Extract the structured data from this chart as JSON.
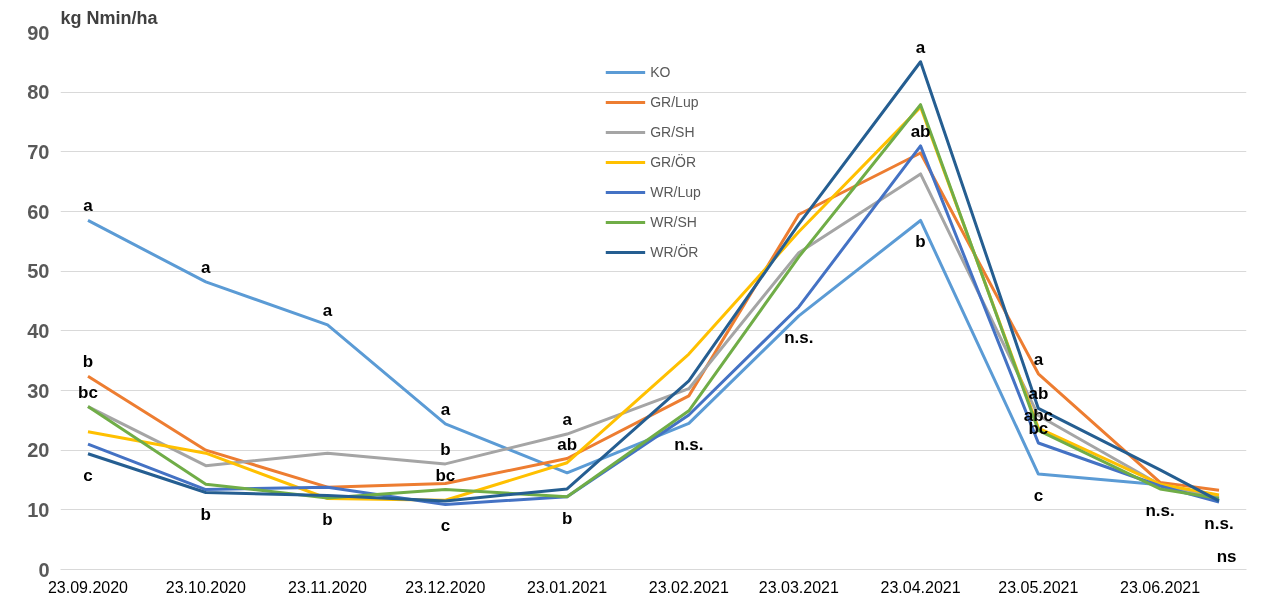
{
  "chart_data": {
    "type": "line",
    "ylabel": "kg Nmin/ha",
    "x": [
      "2020-09-23",
      "2020-10-23",
      "2020-11-23",
      "2020-12-23",
      "2021-01-23",
      "2021-02-23",
      "2021-03-23",
      "2021-04-23",
      "2021-05-23",
      "2021-06-23",
      "2021-07-08"
    ],
    "series": [
      {
        "name": "KO",
        "color": "#5b9bd5",
        "values": [
          58.5,
          48.2,
          41.0,
          24.4,
          16.2,
          24.5,
          42.5,
          58.5,
          16.0,
          14.2,
          11.7
        ]
      },
      {
        "name": "GR/Lup",
        "color": "#ed7d31",
        "values": [
          32.4,
          20.0,
          13.8,
          14.4,
          18.6,
          29.1,
          59.5,
          69.8,
          32.8,
          14.6,
          13.3
        ]
      },
      {
        "name": "GR/SH",
        "color": "#a5a5a5",
        "values": [
          27.3,
          17.4,
          19.5,
          17.7,
          22.7,
          30.3,
          53.1,
          66.3,
          25.8,
          14.2,
          12.1
        ]
      },
      {
        "name": "GR/ÖR",
        "color": "#ffc000",
        "values": [
          23.1,
          19.5,
          11.9,
          11.6,
          17.9,
          36.1,
          56.6,
          77.5,
          23.7,
          14.3,
          12.5
        ]
      },
      {
        "name": "WR/Lup",
        "color": "#4472c4",
        "values": [
          21.0,
          13.4,
          13.8,
          10.9,
          12.2,
          25.9,
          44.0,
          71.0,
          21.2,
          14.0,
          11.3
        ]
      },
      {
        "name": "WR/SH",
        "color": "#70ad47",
        "values": [
          27.3,
          14.3,
          12.0,
          13.4,
          12.2,
          26.6,
          52.4,
          77.9,
          23.3,
          13.5,
          11.9
        ]
      },
      {
        "name": "WR/ÖR",
        "color": "#255e91",
        "values": [
          19.4,
          12.9,
          12.4,
          11.5,
          13.5,
          31.6,
          57.9,
          85.1,
          27.0,
          16.7,
          11.5
        ]
      }
    ],
    "xlim": [
      "2020-09-16",
      "2021-07-15"
    ],
    "xticks": [
      {
        "value": "2020-09-23",
        "label": "23.09.2020"
      },
      {
        "value": "2020-10-23",
        "label": "23.10.2020"
      },
      {
        "value": "2020-11-23",
        "label": "23.11.2020"
      },
      {
        "value": "2020-12-23",
        "label": "23.12.2020"
      },
      {
        "value": "2021-01-23",
        "label": "23.01.2021"
      },
      {
        "value": "2021-02-23",
        "label": "23.02.2021"
      },
      {
        "value": "2021-03-23",
        "label": "23.03.2021"
      },
      {
        "value": "2021-04-23",
        "label": "23.04.2021"
      },
      {
        "value": "2021-05-23",
        "label": "23.05.2021"
      },
      {
        "value": "2021-06-23",
        "label": "23.06.2021"
      }
    ],
    "ylim": [
      0,
      90
    ],
    "yticks": [
      0,
      10,
      20,
      30,
      40,
      50,
      60,
      70,
      80,
      90
    ],
    "grid": "y",
    "legend": "top",
    "marker": "none",
    "line_style": "solid",
    "annotations": [
      {
        "text": "a",
        "x": "2020-09-23",
        "y": 58.5
      },
      {
        "text": "b",
        "x": "2020-09-23",
        "y": 32.4
      },
      {
        "text": "bc",
        "x": "2020-09-23",
        "y": 27.3
      },
      {
        "text": "c",
        "x": "2020-09-23",
        "y": 19.4
      },
      {
        "text": "a",
        "x": "2020-10-23",
        "y": 48.2
      },
      {
        "text": "b",
        "x": "2020-10-23",
        "y": 12.9
      },
      {
        "text": "a",
        "x": "2020-11-23",
        "y": 41.0
      },
      {
        "text": "b",
        "x": "2020-11-23",
        "y": 11.9
      },
      {
        "text": "a",
        "x": "2020-12-23",
        "y": 24.4
      },
      {
        "text": "b",
        "x": "2020-12-23",
        "y": 17.7
      },
      {
        "text": "bc",
        "x": "2020-12-23",
        "y": 13.4
      },
      {
        "text": "c",
        "x": "2020-12-23",
        "y": 10.9
      },
      {
        "text": "a",
        "x": "2021-01-23",
        "y": 22.7
      },
      {
        "text": "ab",
        "x": "2021-01-23",
        "y": 18.6
      },
      {
        "text": "b",
        "x": "2021-01-23",
        "y": 12.2
      },
      {
        "text": "n.s.",
        "x": "2021-02-23",
        "y": 24.5
      },
      {
        "text": "n.s.",
        "x": "2021-03-23",
        "y": 42.5
      },
      {
        "text": "a",
        "x": "2021-04-23",
        "y": 85.1
      },
      {
        "text": "ab",
        "x": "2021-04-23",
        "y": 71.0
      },
      {
        "text": "b",
        "x": "2021-04-23",
        "y": 58.5
      },
      {
        "text": "a",
        "x": "2021-05-23",
        "y": 32.8
      },
      {
        "text": "ab",
        "x": "2021-05-23",
        "y": 27.0
      },
      {
        "text": "abc",
        "x": "2021-05-23",
        "y": 23.3
      },
      {
        "text": "bc",
        "x": "2021-05-23",
        "y": 21.2
      },
      {
        "text": "c",
        "x": "2021-05-23",
        "y": 16.0
      },
      {
        "text": "n.s.",
        "x": "2021-06-23",
        "y": 13.5
      },
      {
        "text": "n.s.",
        "x": "2021-07-08",
        "y": 11.3
      },
      "ns"
    ]
  }
}
